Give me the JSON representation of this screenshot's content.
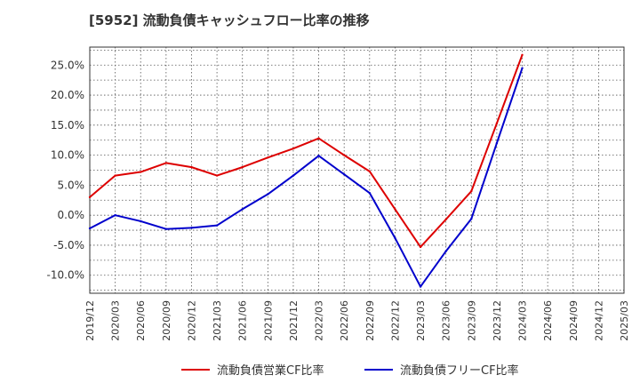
{
  "chart_data": {
    "type": "line",
    "title": "[5952]  流動負債キャッシュフロー比率の推移",
    "xlabel": "",
    "ylabel": "",
    "categories": [
      "2019/12",
      "2020/03",
      "2020/06",
      "2020/09",
      "2020/12",
      "2021/03",
      "2021/06",
      "2021/09",
      "2021/12",
      "2022/03",
      "2022/06",
      "2022/09",
      "2022/12",
      "2023/03",
      "2023/06",
      "2023/09",
      "2023/12",
      "2024/03",
      "2024/06",
      "2024/09",
      "2024/12",
      "2025/03"
    ],
    "ylim": [
      -13,
      28
    ],
    "yticks": [
      -10,
      -5,
      0,
      5,
      10,
      15,
      20,
      25
    ],
    "ytick_labels": [
      "-10.0%",
      "-5.0%",
      "0.0%",
      "5.0%",
      "10.0%",
      "15.0%",
      "20.0%",
      "25.0%"
    ],
    "grid": true,
    "legend_position": "bottom",
    "series": [
      {
        "name": "流動負債営業CF比率",
        "color": "#dd0000",
        "values": [
          3.0,
          6.6,
          7.2,
          8.7,
          8.0,
          6.6,
          8.0,
          9.6,
          11.1,
          12.8,
          10.0,
          7.3,
          1.0,
          -5.3,
          -0.7,
          4.0,
          15.3,
          26.7,
          null,
          null,
          null,
          null
        ]
      },
      {
        "name": "流動負債フリーCF比率",
        "color": "#0000cc",
        "values": [
          -2.2,
          0.0,
          -1.0,
          -2.3,
          -2.1,
          -1.7,
          1.0,
          3.5,
          6.6,
          9.9,
          6.8,
          3.7,
          -3.8,
          -11.9,
          -6.0,
          -0.6,
          12.0,
          24.5,
          null,
          null,
          null,
          null
        ]
      }
    ]
  }
}
